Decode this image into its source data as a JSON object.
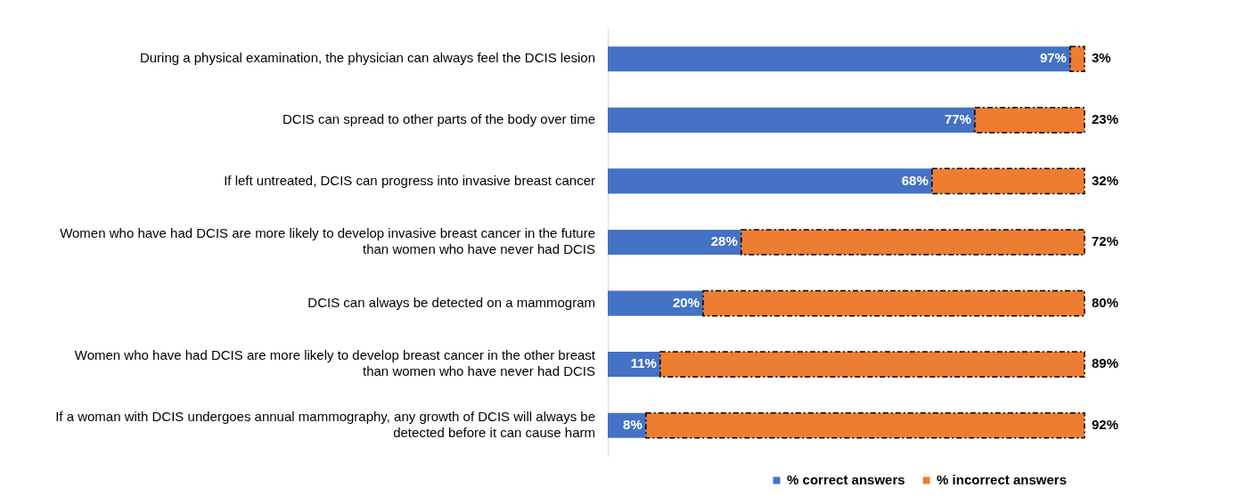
{
  "chart_data": {
    "type": "bar",
    "orientation": "horizontal",
    "stacked": true,
    "tick_labels": "y",
    "grid": false,
    "legend": "bottom right",
    "xlim": [
      0,
      100
    ],
    "categories": [
      "During a physical examination, the physician can always feel the DCIS lesion",
      "DCIS can spread to other parts of the body over time",
      "If left untreated, DCIS can progress into invasive breast cancer",
      "Women who have had DCIS are more likely to develop invasive breast cancer in the future than women who have never had DCIS",
      "DCIS can always be detected on a mammogram",
      "Women who have had DCIS are more likely to develop breast cancer in the other breast than women who have never had DCIS",
      "If a woman with DCIS undergoes annual mammography, any growth of DCIS will always be detected before it can cause harm"
    ],
    "series": [
      {
        "name": "% correct answers",
        "color": "#4472c4",
        "values": [
          97,
          77,
          68,
          28,
          20,
          11,
          8
        ],
        "value_labels": [
          "97%",
          "77%",
          "68%",
          "28%",
          "20%",
          "11%",
          "8%"
        ]
      },
      {
        "name": "% incorrect answers",
        "color": "#ed7d31",
        "line_style": "dashed",
        "values": [
          3,
          23,
          32,
          72,
          80,
          89,
          92
        ],
        "value_labels": [
          "3%",
          "23%",
          "32%",
          "72%",
          "80%",
          "89%",
          "92%"
        ]
      }
    ]
  }
}
